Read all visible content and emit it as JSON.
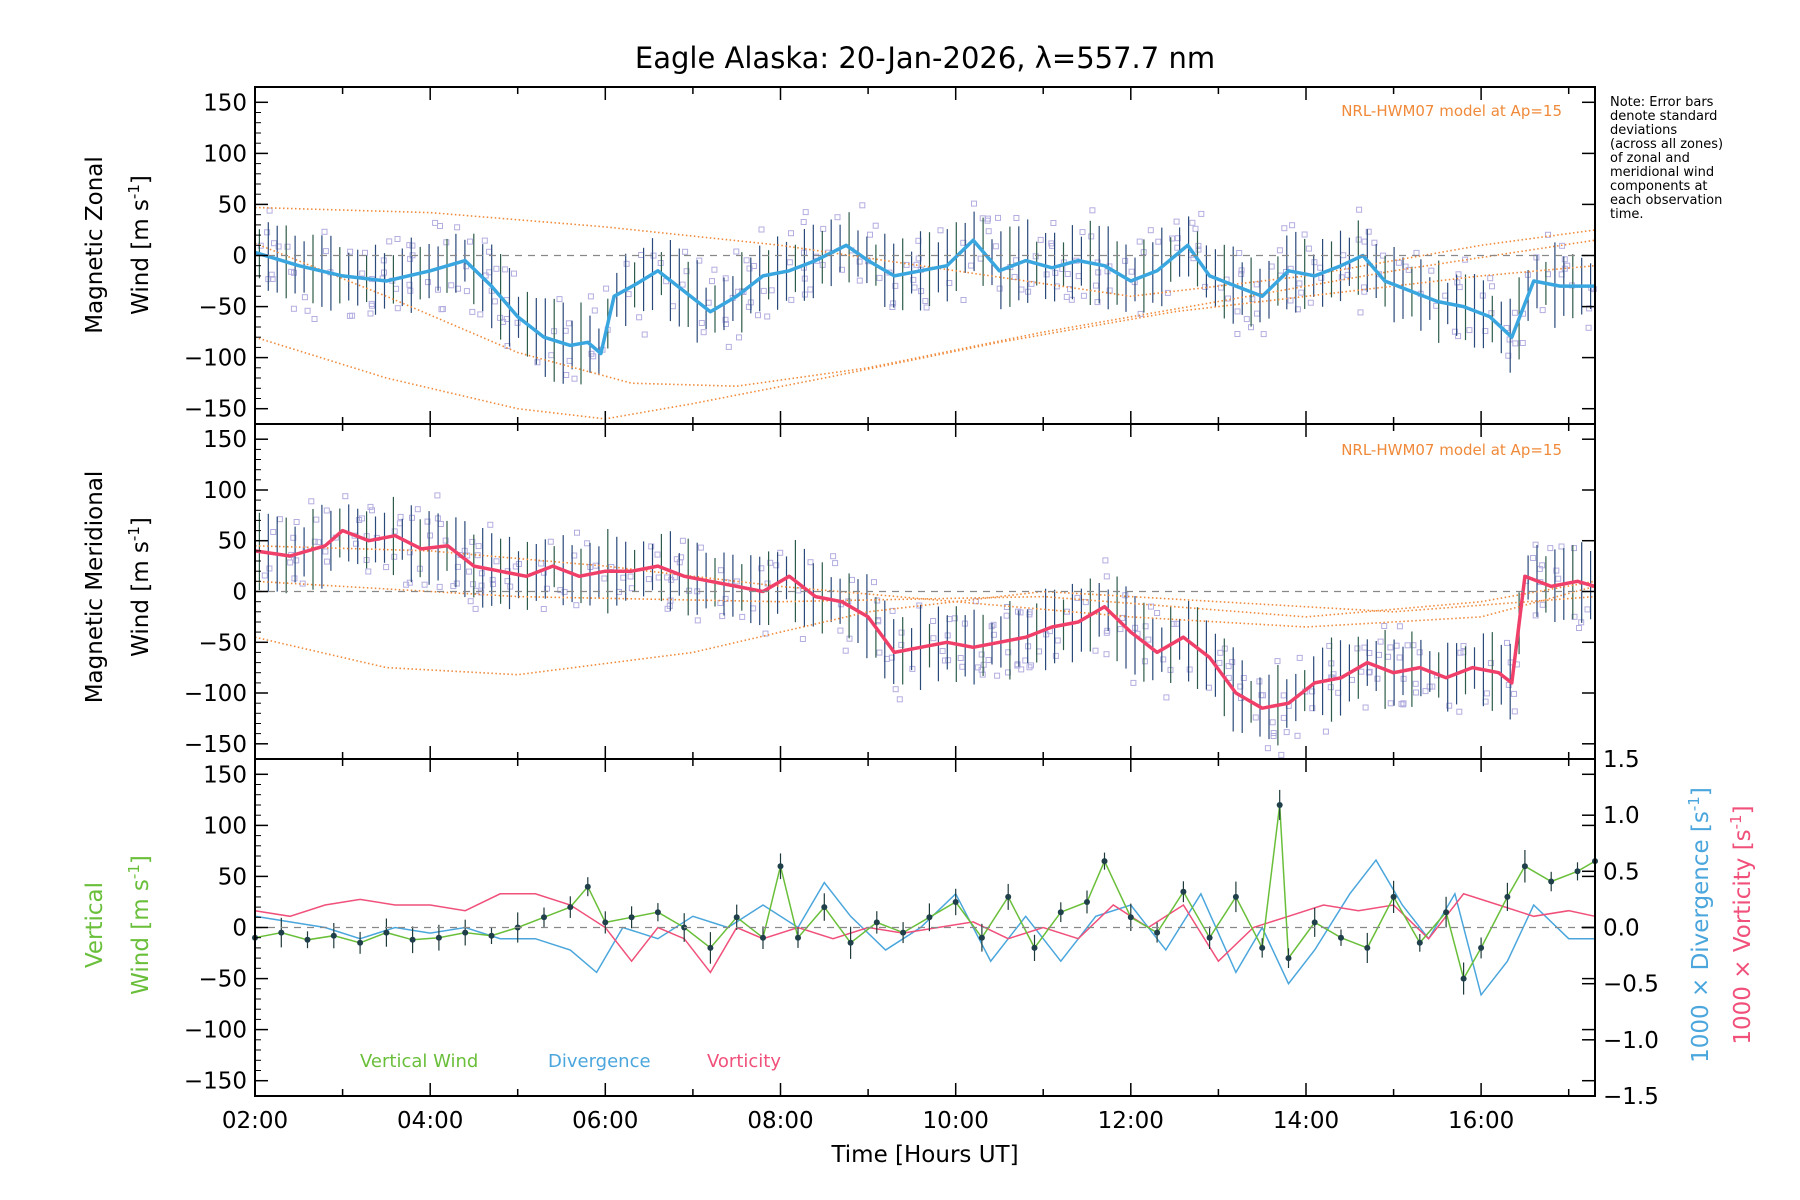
{
  "chart_data": {
    "type": "line",
    "title": "Eagle Alaska: 20-Jan-2026, λ=557.7 nm",
    "xlabel": "Time [Hours UT]",
    "xlim": [
      2.0,
      17.3
    ],
    "x_ticks": [
      2,
      4,
      6,
      8,
      10,
      12,
      14,
      16
    ],
    "x_tick_labels": [
      "02:00",
      "04:00",
      "06:00",
      "08:00",
      "10:00",
      "12:00",
      "14:00",
      "16:00"
    ],
    "note": "Note: Error bars denote standard deviations (across all zones) of zonal and meridional wind components at each observation time.",
    "note_lines": [
      "Note: Error bars",
      "denote standard",
      "deviations",
      "(across all zones)",
      "of zonal and",
      "meridional wind",
      "components at",
      "each observation",
      "time."
    ],
    "panels": [
      {
        "id": "zonal",
        "ylabel_line1": "Magnetic Zonal",
        "ylabel_line2": "Wind [m s",
        "ylabel_sup": "-1",
        "ylabel_close": "]",
        "ylim": [
          -165,
          165
        ],
        "y_ticks": [
          -150,
          -100,
          -50,
          0,
          50,
          100,
          150
        ],
        "y_tick_labels": [
          "−150",
          "−100",
          "−50",
          "0",
          "50",
          "100",
          "150"
        ],
        "model_label": "NRL-HWM07 model at Ap=15",
        "series": [
          {
            "name": "Mean zonal wind",
            "color": "#3aa6e0",
            "x": [
              2.0,
              2.5,
              3.0,
              3.5,
              4.0,
              4.4,
              4.7,
              5.0,
              5.3,
              5.6,
              5.8,
              5.95,
              6.1,
              6.35,
              6.6,
              6.9,
              7.2,
              7.5,
              7.8,
              8.1,
              8.4,
              8.75,
              9.0,
              9.3,
              9.6,
              9.9,
              10.2,
              10.5,
              10.8,
              11.1,
              11.4,
              11.7,
              12.0,
              12.3,
              12.65,
              12.9,
              13.2,
              13.5,
              13.8,
              14.1,
              14.4,
              14.65,
              14.9,
              15.2,
              15.5,
              15.8,
              16.1,
              16.35,
              16.6,
              16.9,
              17.3
            ],
            "y": [
              3,
              -10,
              -20,
              -25,
              -15,
              -5,
              -30,
              -60,
              -80,
              -88,
              -85,
              -96,
              -40,
              -28,
              -15,
              -35,
              -55,
              -40,
              -20,
              -15,
              -5,
              10,
              -5,
              -20,
              -15,
              -10,
              15,
              -15,
              -5,
              -12,
              -5,
              -10,
              -25,
              -15,
              10,
              -20,
              -30,
              -40,
              -15,
              -20,
              -10,
              0,
              -25,
              -35,
              -45,
              -50,
              -60,
              -80,
              -25,
              -30,
              -30
            ]
          },
          {
            "name": "Model curve 1",
            "color": "#f08a3a",
            "x": [
              2,
              4,
              6,
              8,
              10,
              12,
              14,
              16,
              17.3
            ],
            "y": [
              47,
              42,
              28,
              10,
              -15,
              -40,
              -20,
              10,
              25
            ]
          },
          {
            "name": "Model curve 2",
            "color": "#f08a3a",
            "x": [
              2,
              3.5,
              5,
              6,
              7,
              8.5,
              10.5,
              12.5,
              14.5,
              16,
              17.3
            ],
            "y": [
              -80,
              -120,
              -150,
              -160,
              -145,
              -120,
              -85,
              -55,
              -35,
              -20,
              -10
            ]
          },
          {
            "name": "Model curve 3",
            "color": "#f08a3a",
            "x": [
              2,
              3.5,
              5,
              6.3,
              7.5,
              9,
              11,
              13,
              15,
              17.3
            ],
            "y": [
              12,
              -40,
              -95,
              -125,
              -128,
              -110,
              -75,
              -45,
              -15,
              15
            ]
          }
        ]
      },
      {
        "id": "meridional",
        "ylabel_line1": "Magnetic Meridional",
        "ylabel_line2": "Wind [m s",
        "ylabel_sup": "-1",
        "ylabel_close": "]",
        "ylim": [
          -165,
          165
        ],
        "y_ticks": [
          -150,
          -100,
          -50,
          0,
          50,
          100,
          150
        ],
        "y_tick_labels": [
          "−150",
          "−100",
          "−50",
          "0",
          "50",
          "100",
          "150"
        ],
        "model_label": "NRL-HWM07 model at Ap=15",
        "series": [
          {
            "name": "Mean meridional wind",
            "color": "#f0406a",
            "x": [
              2.0,
              2.4,
              2.8,
              3.0,
              3.3,
              3.6,
              3.9,
              4.2,
              4.5,
              4.8,
              5.1,
              5.4,
              5.7,
              6.0,
              6.3,
              6.6,
              6.9,
              7.2,
              7.5,
              7.8,
              8.1,
              8.4,
              8.7,
              9.0,
              9.3,
              9.6,
              9.9,
              10.2,
              10.5,
              10.8,
              11.1,
              11.4,
              11.7,
              12.0,
              12.3,
              12.6,
              12.9,
              13.2,
              13.5,
              13.8,
              14.1,
              14.4,
              14.7,
              15.0,
              15.3,
              15.6,
              15.9,
              16.2,
              16.35,
              16.5,
              16.8,
              17.1,
              17.3
            ],
            "y": [
              40,
              35,
              45,
              60,
              50,
              55,
              42,
              45,
              25,
              20,
              15,
              25,
              15,
              20,
              20,
              25,
              15,
              10,
              5,
              0,
              15,
              -5,
              -10,
              -25,
              -60,
              -55,
              -50,
              -55,
              -50,
              -45,
              -35,
              -30,
              -15,
              -40,
              -60,
              -45,
              -65,
              -100,
              -115,
              -110,
              -90,
              -85,
              -70,
              -80,
              -75,
              -85,
              -75,
              -80,
              -90,
              15,
              5,
              10,
              5
            ]
          },
          {
            "name": "Model curve 1",
            "color": "#f08a3a",
            "x": [
              2,
              3.5,
              5,
              7,
              9,
              11,
              13,
              15,
              17.3
            ],
            "y": [
              -45,
              -75,
              -82,
              -60,
              -20,
              0,
              -10,
              -20,
              -5
            ]
          },
          {
            "name": "Model curve 2",
            "color": "#f08a3a",
            "x": [
              2,
              4,
              6,
              8,
              10,
              12,
              14,
              16,
              17.3
            ],
            "y": [
              45,
              40,
              25,
              5,
              -10,
              -25,
              -35,
              -25,
              5
            ]
          },
          {
            "name": "Model curve 3",
            "color": "#f08a3a",
            "x": [
              2,
              5,
              8,
              11,
              12.5,
              14,
              16,
              17.3
            ],
            "y": [
              10,
              -5,
              -10,
              -5,
              -15,
              -25,
              -10,
              10
            ]
          }
        ]
      },
      {
        "id": "vertical",
        "ylabel_line1": "Vertical",
        "ylabel_line2": "Wind [m s",
        "ylabel_sup": "-1",
        "ylabel_close": "]",
        "ylim": [
          -165,
          165
        ],
        "y_ticks": [
          -150,
          -100,
          -50,
          0,
          50,
          100,
          150
        ],
        "y_tick_labels": [
          "−150",
          "−100",
          "−50",
          "0",
          "50",
          "100",
          "150"
        ],
        "y2_label_div": "1000 × Divergence [s",
        "y2_label_vort": "1000 × Vorticity [s",
        "y2_sup": "-1",
        "y2_close": "]",
        "y2lim": [
          -1.5,
          1.5
        ],
        "y2_ticks": [
          -1.5,
          -1.0,
          -0.5,
          0.0,
          0.5,
          1.0,
          1.5
        ],
        "y2_tick_labels": [
          "−1.5",
          "−1.0",
          "−0.5",
          "0.0",
          "0.5",
          "1.0",
          "1.5"
        ],
        "legend": [
          "Vertical Wind",
          "Divergence",
          "Vorticity"
        ],
        "series": [
          {
            "name": "Vertical Wind",
            "color": "#6abf3a",
            "x": [
              2.0,
              2.3,
              2.6,
              2.9,
              3.2,
              3.5,
              3.8,
              4.1,
              4.4,
              4.7,
              5.0,
              5.3,
              5.6,
              5.8,
              6.0,
              6.3,
              6.6,
              6.9,
              7.2,
              7.5,
              7.8,
              8.0,
              8.2,
              8.5,
              8.8,
              9.1,
              9.4,
              9.7,
              10.0,
              10.3,
              10.6,
              10.9,
              11.2,
              11.5,
              11.7,
              12.0,
              12.3,
              12.6,
              12.9,
              13.2,
              13.5,
              13.7,
              13.8,
              14.1,
              14.4,
              14.7,
              15.0,
              15.3,
              15.6,
              15.8,
              16.0,
              16.3,
              16.5,
              16.8,
              17.1,
              17.3
            ],
            "y": [
              -10,
              -5,
              -12,
              -8,
              -15,
              -5,
              -12,
              -10,
              -5,
              -8,
              0,
              10,
              20,
              40,
              5,
              10,
              15,
              0,
              -20,
              10,
              -10,
              60,
              -10,
              20,
              -15,
              5,
              -5,
              10,
              25,
              -10,
              30,
              -20,
              15,
              25,
              65,
              10,
              -5,
              35,
              -10,
              30,
              -20,
              120,
              -30,
              5,
              -10,
              -20,
              30,
              -15,
              15,
              -50,
              -20,
              30,
              60,
              45,
              55,
              65
            ]
          },
          {
            "name": "Divergence",
            "color": "#4aa6dc",
            "x": [
              2.0,
              2.4,
              2.8,
              3.2,
              3.6,
              4.0,
              4.4,
              4.8,
              5.2,
              5.6,
              5.9,
              6.2,
              6.6,
              7.0,
              7.4,
              7.8,
              8.2,
              8.5,
              8.8,
              9.2,
              9.6,
              10.0,
              10.4,
              10.8,
              11.2,
              11.6,
              12.0,
              12.4,
              12.8,
              13.2,
              13.5,
              13.8,
              14.1,
              14.5,
              14.8,
              15.1,
              15.4,
              15.7,
              16.0,
              16.3,
              16.6,
              17.0,
              17.3
            ],
            "y": [
              0.1,
              0.05,
              0.0,
              -0.1,
              0.0,
              -0.05,
              0.0,
              -0.1,
              -0.1,
              -0.2,
              -0.4,
              0.0,
              -0.1,
              0.1,
              0.0,
              0.2,
              0.0,
              0.4,
              0.1,
              -0.2,
              0.0,
              0.3,
              -0.3,
              0.1,
              -0.3,
              0.1,
              0.2,
              -0.2,
              0.3,
              -0.4,
              0.0,
              -0.5,
              -0.2,
              0.3,
              0.6,
              0.2,
              -0.1,
              0.3,
              -0.6,
              -0.3,
              0.2,
              -0.1,
              -0.1
            ]
          },
          {
            "name": "Vorticity",
            "color": "#f0507a",
            "x": [
              2.0,
              2.4,
              2.8,
              3.2,
              3.6,
              4.0,
              4.4,
              4.8,
              5.2,
              5.6,
              6.0,
              6.3,
              6.6,
              6.9,
              7.2,
              7.5,
              7.8,
              8.2,
              8.6,
              9.0,
              9.4,
              9.8,
              10.2,
              10.6,
              11.0,
              11.4,
              11.8,
              12.2,
              12.6,
              13.0,
              13.4,
              13.8,
              14.2,
              14.6,
              15.0,
              15.4,
              15.8,
              16.2,
              16.6,
              17.0,
              17.3
            ],
            "y": [
              0.15,
              0.1,
              0.2,
              0.25,
              0.2,
              0.2,
              0.15,
              0.3,
              0.3,
              0.2,
              0.0,
              -0.3,
              0.0,
              -0.1,
              -0.4,
              0.0,
              -0.1,
              0.0,
              -0.1,
              0.0,
              -0.05,
              0.0,
              0.05,
              -0.1,
              0.0,
              -0.1,
              0.2,
              0.0,
              0.2,
              -0.3,
              0.0,
              0.1,
              0.2,
              0.15,
              0.2,
              -0.1,
              0.3,
              0.2,
              0.1,
              0.15,
              0.1
            ]
          }
        ]
      }
    ]
  }
}
